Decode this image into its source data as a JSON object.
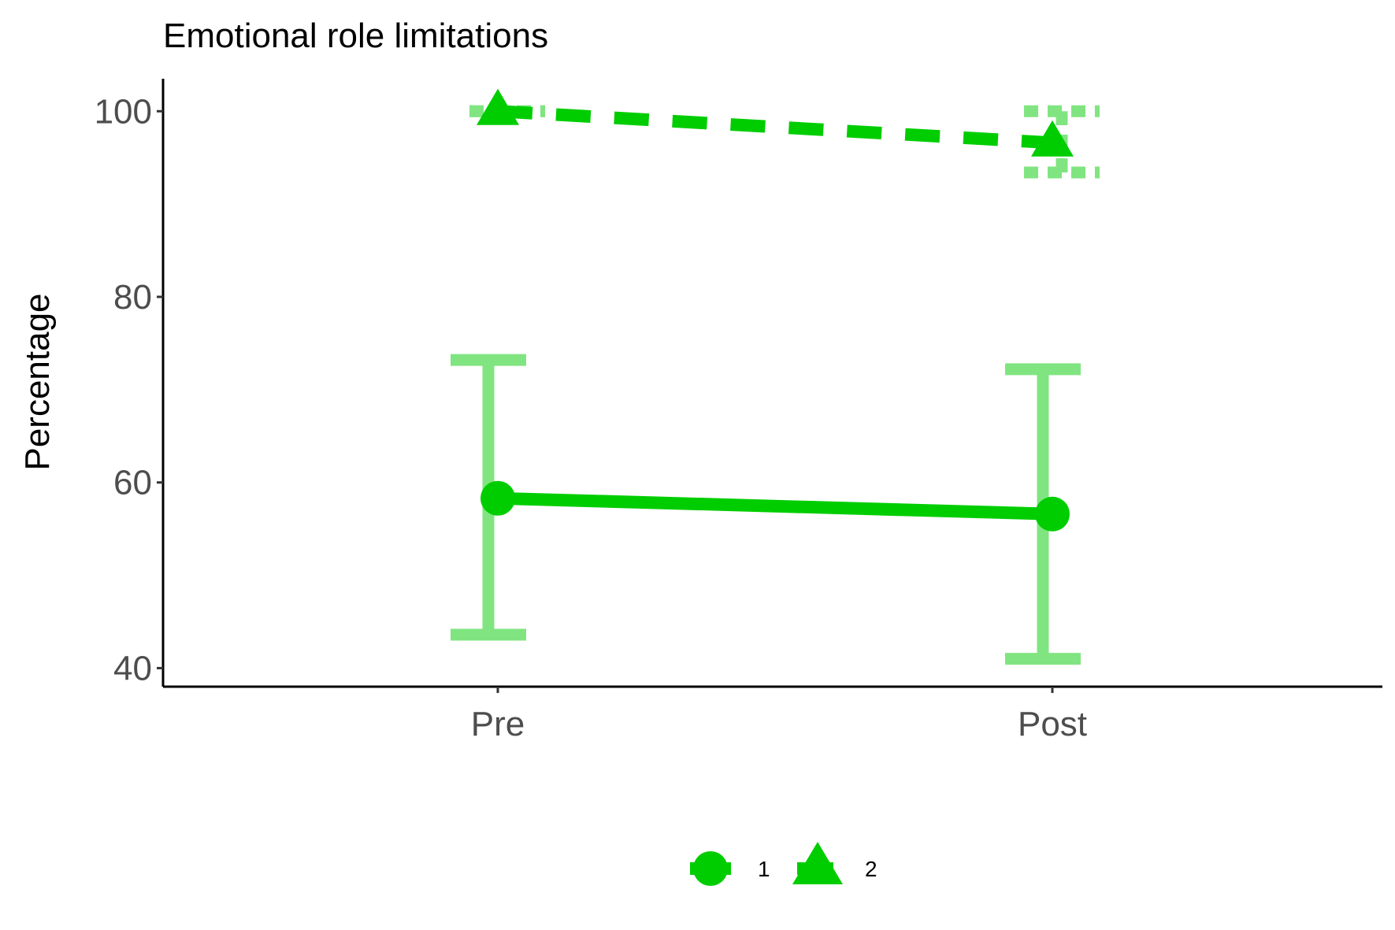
{
  "chart_data": {
    "type": "line",
    "title": "Emotional role limitations",
    "xlabel": "",
    "ylabel": "Percentage",
    "categories": [
      "Pre",
      "Post"
    ],
    "ylim": [
      38,
      103.5
    ],
    "yticks": [
      40,
      60,
      80,
      100
    ],
    "grid": false,
    "legend_position": "bottom",
    "series": [
      {
        "name": "1",
        "marker": "circle",
        "linestyle": "solid",
        "color": "#00CD00",
        "values": [
          58.3,
          56.6
        ],
        "error_low": [
          43.6,
          41.0
        ],
        "error_high": [
          73.2,
          72.2
        ]
      },
      {
        "name": "2",
        "marker": "triangle",
        "linestyle": "dashed",
        "color": "#00CD00",
        "values": [
          100.0,
          96.6
        ],
        "error_low": [
          100.0,
          93.4
        ],
        "error_high": [
          100.0,
          100.0
        ]
      }
    ]
  }
}
